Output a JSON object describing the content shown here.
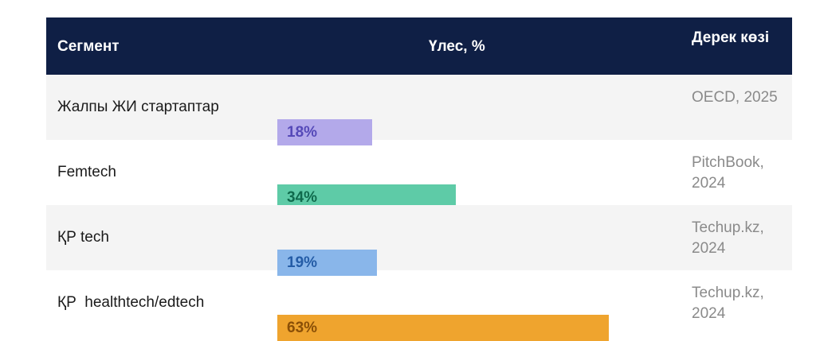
{
  "header": {
    "segment": "Сегмент",
    "share": "Үлес, %",
    "source": "Дерек көзі"
  },
  "colors": {
    "header_bg": "#0f1f45"
  },
  "chart_data": {
    "type": "bar",
    "orientation": "horizontal",
    "categories": [
      "Жалпы ЖИ стартаптар",
      "Femtech",
      "ҚР tech",
      "ҚР  healthtech/edtech"
    ],
    "values": [
      18,
      34,
      19,
      63
    ],
    "value_labels": [
      "18%",
      "34%",
      "19%",
      "63%"
    ],
    "sources": [
      "OECD, 2025",
      "PitchBook, 2024",
      "Techup.kz, 2024",
      "Techup.kz, 2024"
    ],
    "bar_colors": [
      "#b3a9ea",
      "#5ecba7",
      "#89b6ea",
      "#efa42e"
    ],
    "label_colors": [
      "#5549b8",
      "#0f6a4c",
      "#245ca6",
      "#8a4f07"
    ],
    "xlim": [
      0,
      100
    ]
  }
}
